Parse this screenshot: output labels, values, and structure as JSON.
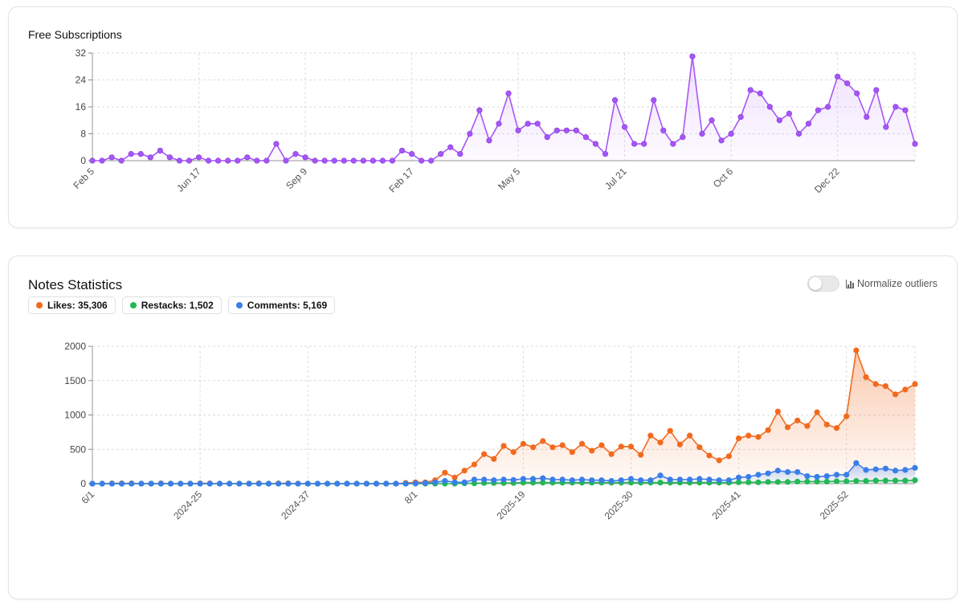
{
  "subscriptions_card": {
    "title": "Free Subscriptions"
  },
  "notes_card": {
    "title": "Notes Statistics",
    "legend": {
      "likes": "Likes: 35,306",
      "restacks": "Restacks: 1,502",
      "comments": "Comments: 5,169"
    },
    "normalize_label": "Normalize outliers",
    "normalize_on": false
  },
  "colors": {
    "subscriptions": "#a855f7",
    "likes": "#f26a1e",
    "restacks": "#22b856",
    "comments": "#3b7ee8"
  },
  "chart_data": [
    {
      "type": "area",
      "title": "Free Subscriptions",
      "xlabel": "",
      "ylabel": "",
      "ylim": [
        0,
        32
      ],
      "yticks": [
        0,
        8,
        16,
        24,
        32
      ],
      "grid": true,
      "x_tick_labels": [
        "Feb 5",
        "Jun 17",
        "Sep 9",
        "Feb 17",
        "May 5",
        "Jul 21",
        "Oct 6",
        "Dec 22"
      ],
      "x_tick_indices": [
        0,
        11,
        22,
        33,
        44,
        55,
        66,
        77
      ],
      "series": [
        {
          "values": [
            0,
            0,
            1,
            0,
            2,
            2,
            1,
            3,
            1,
            0,
            0,
            1,
            0,
            0,
            0,
            0,
            1,
            0,
            0,
            5,
            0,
            2,
            1,
            0,
            0,
            0,
            0,
            0,
            0,
            0,
            0,
            0,
            3,
            2,
            0,
            0,
            2,
            4,
            2,
            8,
            15,
            6,
            11,
            20,
            9,
            11,
            11,
            7,
            9,
            9,
            9,
            7,
            5,
            2,
            18,
            10,
            5,
            5,
            18,
            9,
            5,
            7,
            31,
            8,
            12,
            6,
            8,
            13,
            21,
            20,
            16,
            12,
            14,
            8,
            11,
            15,
            16,
            25,
            23,
            20,
            13,
            21,
            10,
            16,
            15,
            5
          ]
        }
      ]
    },
    {
      "type": "area",
      "title": "Notes Statistics",
      "xlabel": "",
      "ylabel": "",
      "ylim": [
        0,
        2000
      ],
      "yticks": [
        0,
        500,
        1000,
        1500,
        2000
      ],
      "grid": true,
      "legend": "top-left",
      "x_tick_labels": [
        "6/1",
        "2024-25",
        "2024-37",
        "8/1",
        "2025-19",
        "2025-30",
        "2025-41",
        "2025-52"
      ],
      "x_tick_indices": [
        0,
        11,
        22,
        33,
        44,
        55,
        66,
        77
      ],
      "series": [
        {
          "name": "Likes",
          "values": [
            0,
            0,
            5,
            5,
            5,
            0,
            0,
            5,
            0,
            0,
            0,
            5,
            5,
            0,
            0,
            0,
            0,
            5,
            0,
            5,
            5,
            0,
            0,
            0,
            0,
            0,
            0,
            0,
            0,
            0,
            0,
            0,
            10,
            20,
            20,
            50,
            160,
            90,
            190,
            280,
            430,
            360,
            550,
            460,
            580,
            530,
            620,
            530,
            560,
            460,
            580,
            480,
            560,
            430,
            540,
            540,
            420,
            700,
            600,
            770,
            570,
            700,
            530,
            410,
            340,
            400,
            660,
            700,
            680,
            780,
            1050,
            820,
            920,
            840,
            1040,
            860,
            810,
            980,
            1940,
            1550,
            1450,
            1420,
            1300,
            1370,
            1450
          ]
        },
        {
          "name": "Restacks",
          "values": [
            0,
            0,
            0,
            0,
            0,
            0,
            0,
            0,
            0,
            0,
            0,
            0,
            0,
            0,
            0,
            0,
            0,
            0,
            0,
            0,
            0,
            0,
            0,
            0,
            0,
            0,
            0,
            0,
            0,
            0,
            0,
            0,
            0,
            0,
            0,
            0,
            0,
            0,
            5,
            5,
            10,
            10,
            10,
            10,
            15,
            15,
            15,
            15,
            15,
            15,
            15,
            15,
            15,
            15,
            15,
            15,
            15,
            15,
            15,
            15,
            15,
            15,
            15,
            15,
            15,
            15,
            20,
            20,
            20,
            25,
            25,
            25,
            30,
            30,
            30,
            30,
            35,
            35,
            40,
            40,
            45,
            45,
            45,
            45,
            50
          ]
        },
        {
          "name": "Comments",
          "values": [
            0,
            0,
            0,
            0,
            0,
            0,
            0,
            0,
            0,
            0,
            0,
            0,
            0,
            0,
            0,
            0,
            0,
            0,
            0,
            0,
            0,
            0,
            0,
            0,
            0,
            0,
            0,
            0,
            0,
            0,
            0,
            0,
            0,
            5,
            10,
            20,
            40,
            20,
            20,
            60,
            60,
            50,
            60,
            55,
            70,
            70,
            80,
            60,
            60,
            50,
            60,
            50,
            50,
            40,
            50,
            70,
            50,
            50,
            120,
            60,
            60,
            60,
            70,
            60,
            50,
            50,
            90,
            100,
            130,
            150,
            190,
            170,
            170,
            110,
            100,
            110,
            130,
            130,
            300,
            200,
            210,
            220,
            190,
            200,
            230
          ]
        }
      ]
    }
  ]
}
